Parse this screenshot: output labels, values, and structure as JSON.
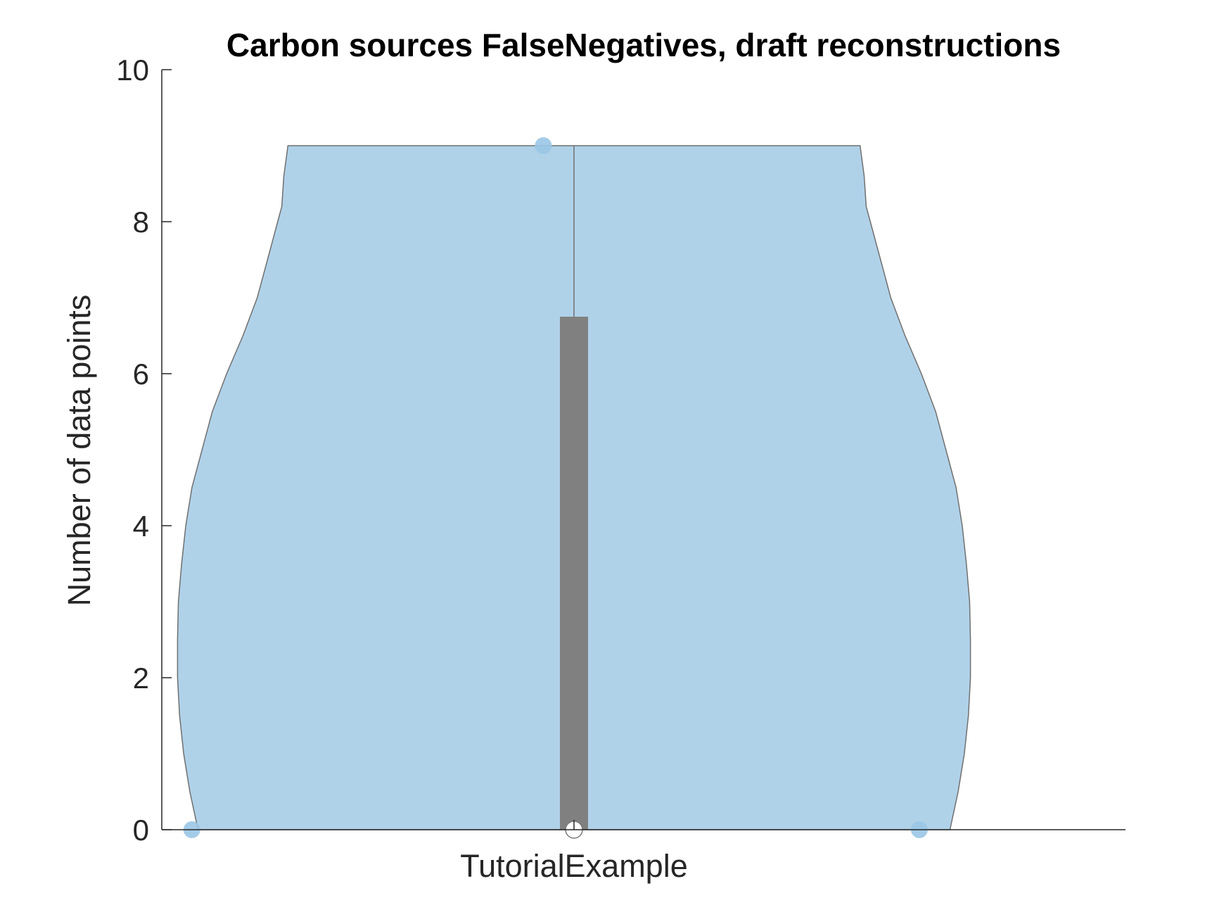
{
  "chart_data": {
    "type": "violin",
    "title": "Carbon sources FalseNegatives, draft reconstructions",
    "xlabel": "",
    "ylabel": "Number of data points",
    "categories": [
      "TutorialExample"
    ],
    "ylim": [
      0,
      10
    ],
    "yticks": [
      0,
      2,
      4,
      6,
      8,
      10
    ],
    "grid": false,
    "colors": {
      "violin_fill": "#b0d2e9",
      "violin_edge": "#707070",
      "points": "#9ac6e6",
      "box": "#808080",
      "median": "#ffffff"
    },
    "points": [
      0,
      9,
      0
    ],
    "box": {
      "q1": 0,
      "median": 0,
      "q3": 6.75,
      "whisker_high": 9,
      "whisker_low": 0
    },
    "violin": {
      "y": [
        0,
        0.5,
        1,
        1.5,
        2,
        2.5,
        3,
        3.5,
        4,
        4.5,
        5,
        5.5,
        6,
        6.5,
        7,
        7.5,
        8,
        8.2,
        8.6,
        9
      ],
      "half_width": [
        0.92,
        0.94,
        0.955,
        0.965,
        0.97,
        0.97,
        0.968,
        0.96,
        0.95,
        0.935,
        0.91,
        0.885,
        0.85,
        0.81,
        0.775,
        0.75,
        0.725,
        0.715,
        0.71,
        0.7
      ]
    }
  }
}
